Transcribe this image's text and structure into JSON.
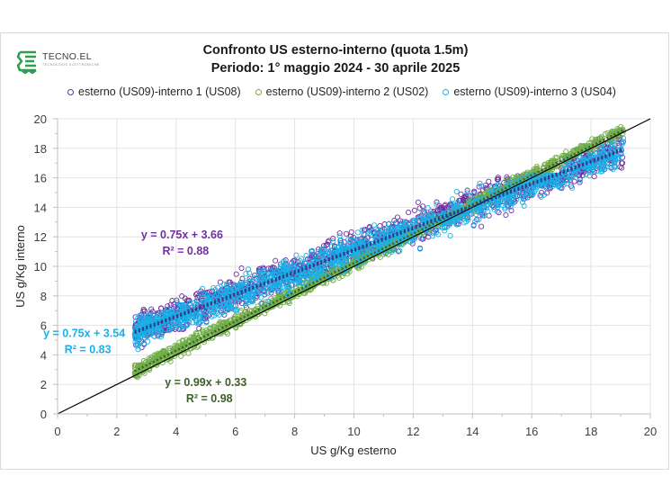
{
  "logo": {
    "name": "TECNO.EL",
    "subtitle": "TECNOLOGIE ELETTRONICHE",
    "color": "#2e9e4f"
  },
  "chart_data": {
    "type": "scatter",
    "title": [
      "Confronto US esterno-interno (quota 1.5m)",
      "Periodo: 1° maggio 2024 - 30 aprile 2025"
    ],
    "xlabel": "US g/Kg esterno",
    "ylabel": "US g/Kg interno",
    "xlim": [
      0,
      20
    ],
    "ylim": [
      0,
      20
    ],
    "xticks": [
      "0",
      "2",
      "4",
      "6",
      "8",
      "10",
      "12",
      "14",
      "16",
      "18",
      "20"
    ],
    "yticks": [
      "0",
      "2",
      "4",
      "6",
      "8",
      "10",
      "12",
      "14",
      "16",
      "18",
      "20"
    ],
    "grid": true,
    "legend_position": "top",
    "reference_line": {
      "label": "y = x",
      "color": "#000000",
      "from": [
        0,
        0
      ],
      "to": [
        20,
        20
      ]
    },
    "series": [
      {
        "name": "esterno (US09)-interno 1 (US08)",
        "color": "#7030a0",
        "marker": "open-circle",
        "x_range": [
          2.6,
          19.1
        ],
        "trendline": {
          "slope": 0.75,
          "intercept": 3.66,
          "r2": 0.88,
          "color": "#2e3a87",
          "style": "dotted"
        },
        "annotation": {
          "equation": "y = 0.75x + 3.66",
          "r2_text": "R² = 0.88",
          "anchor": [
            4.2,
            11.9
          ]
        }
      },
      {
        "name": "esterno (US09)-interno 2 (US02)",
        "color": "#70ad47",
        "marker": "open-circle",
        "x_range": [
          2.6,
          19.1
        ],
        "trendline": {
          "slope": 0.99,
          "intercept": 0.33,
          "r2": 0.98,
          "color": "#3f5f2a",
          "style": "dotted"
        },
        "annotation": {
          "equation": "y = 0.99x + 0.33",
          "r2_text": "R² = 0.98",
          "anchor": [
            5.0,
            1.9
          ]
        }
      },
      {
        "name": "esterno (US09)-interno 3 (US04)",
        "color": "#1ab0e8",
        "marker": "open-circle",
        "x_range": [
          2.6,
          19.1
        ],
        "trendline": {
          "slope": 0.75,
          "intercept": 3.54,
          "r2": 0.83,
          "color": "#2e3a87",
          "style": "dotted"
        },
        "annotation": {
          "equation": "y = 0.75x + 3.54",
          "r2_text": "R² = 0.83",
          "anchor": [
            0.9,
            5.2
          ]
        }
      }
    ]
  }
}
